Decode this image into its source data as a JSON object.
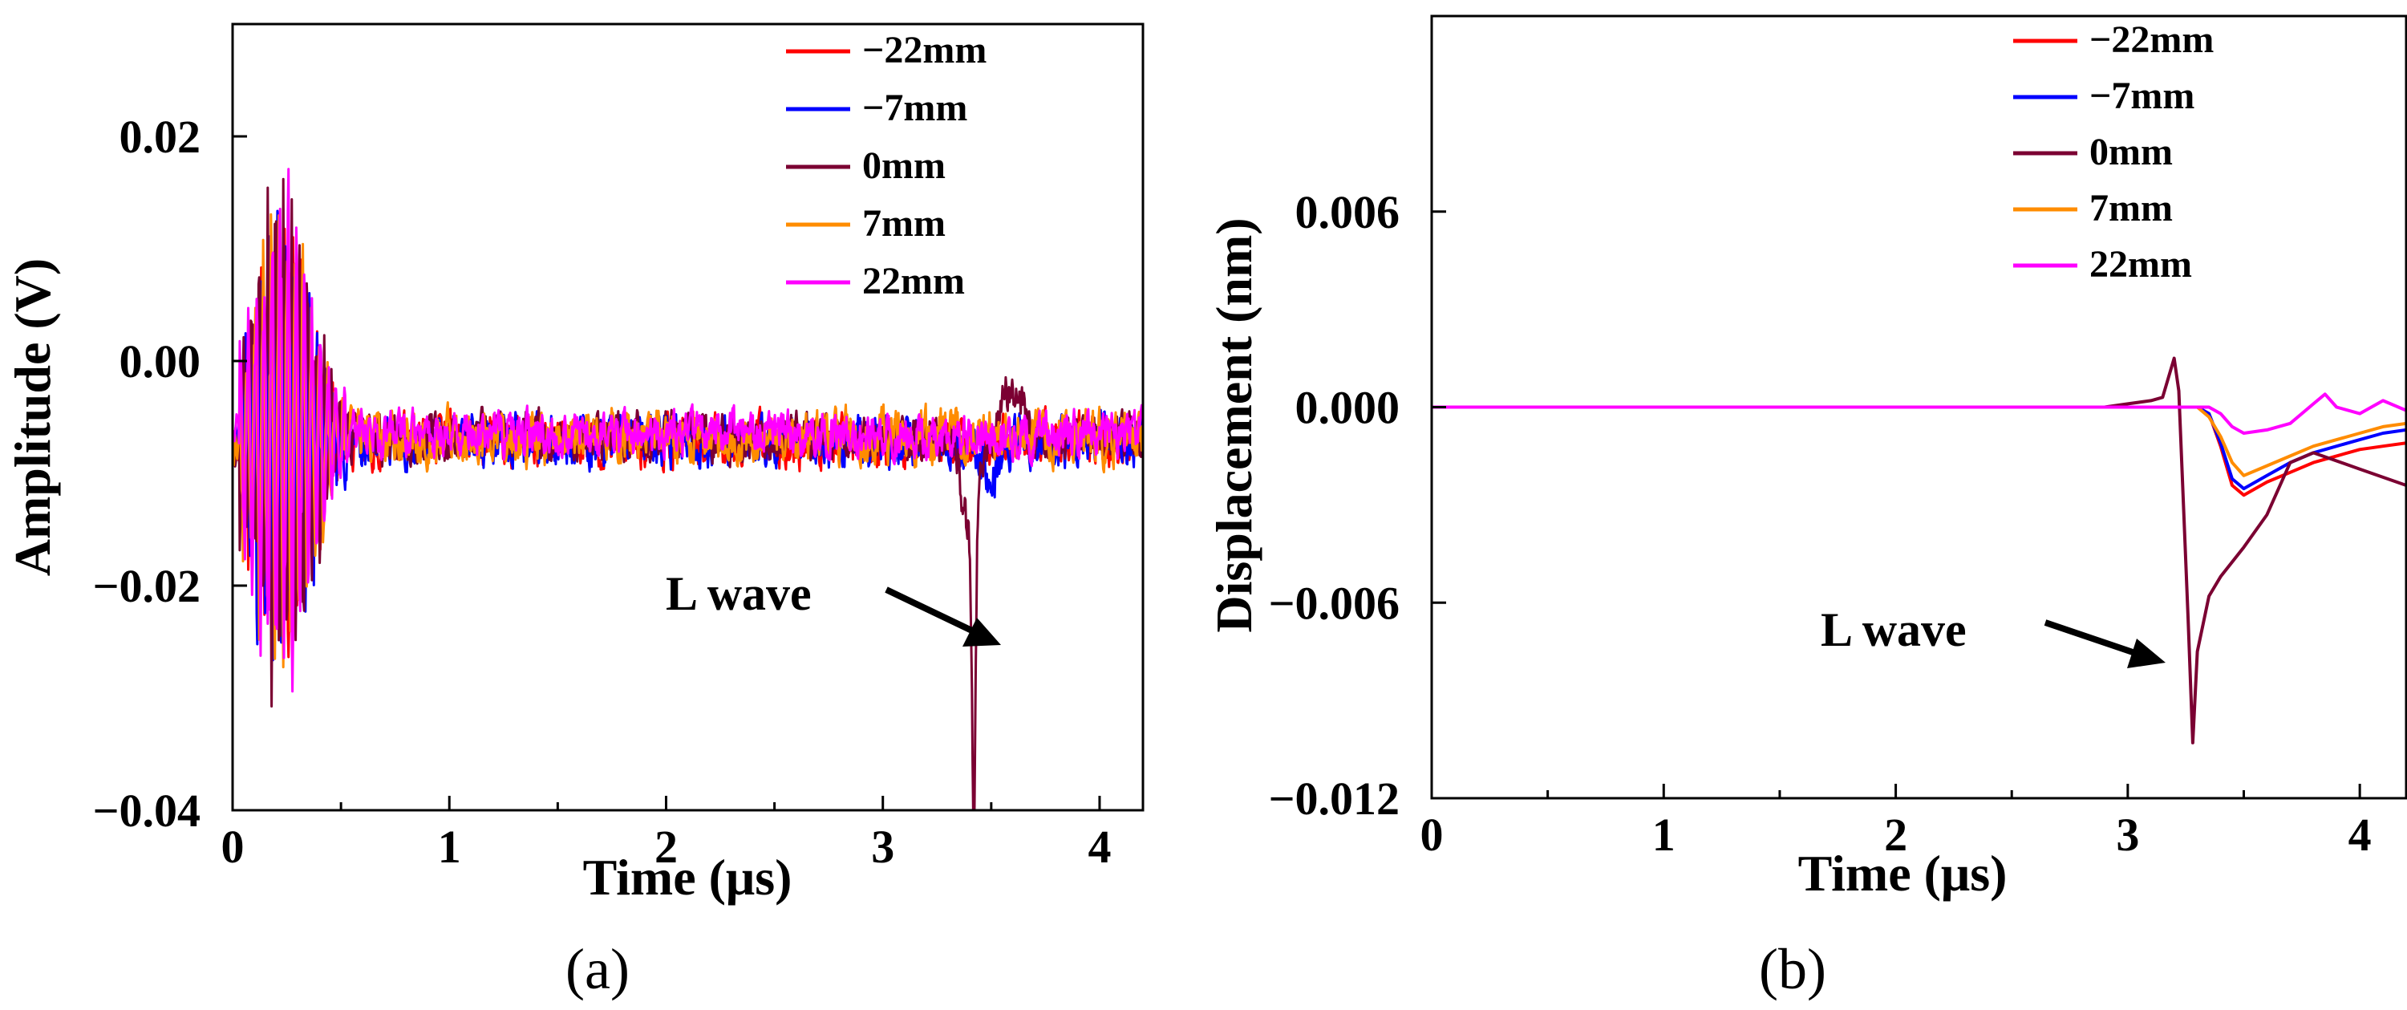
{
  "figure": {
    "panel_labels": [
      "(a)",
      "(b)"
    ]
  },
  "chart_data": [
    {
      "type": "line",
      "panel": "(a)",
      "xlabel": "Time (μs)",
      "ylabel": "Amplitude (V)",
      "xlim": [
        0,
        4.2
      ],
      "ylim": [
        -0.04,
        0.03
      ],
      "xticks": [
        0,
        1,
        2,
        3,
        4
      ],
      "xtick_labels": [
        "0",
        "1",
        "2",
        "3",
        "4"
      ],
      "yticks": [
        -0.04,
        -0.02,
        0.0,
        0.02
      ],
      "ytick_labels": [
        "−0.04",
        "−0.02",
        "0.00",
        "0.02"
      ],
      "legend_position": "top-right",
      "series": [
        {
          "name": "−22mm",
          "color": "#ff0000",
          "baseline": -0.0072,
          "noise": 0.0017,
          "burst_amp": 0.015,
          "seed": 11,
          "features": []
        },
        {
          "name": "−7mm",
          "color": "#0000ff",
          "baseline": -0.0072,
          "noise": 0.0017,
          "burst_amp": 0.016,
          "seed": 23,
          "features": [
            {
              "x": 3.5,
              "dy": -0.004,
              "w": 0.04
            }
          ]
        },
        {
          "name": "0mm",
          "color": "#7b0032",
          "baseline": -0.0068,
          "noise": 0.0016,
          "burst_amp": 0.018,
          "seed": 37,
          "features": [
            {
              "x": 3.42,
              "dy": -0.027,
              "w": 0.012
            },
            {
              "x": 3.4,
              "dy": -0.008,
              "w": 0.05
            },
            {
              "x": 3.6,
              "dy": 0.0045,
              "w": 0.08
            }
          ]
        },
        {
          "name": "7mm",
          "color": "#ff8c00",
          "baseline": -0.0068,
          "noise": 0.0018,
          "burst_amp": 0.016,
          "seed": 53,
          "features": []
        },
        {
          "name": "22mm",
          "color": "#ff00ff",
          "baseline": -0.0065,
          "noise": 0.0015,
          "burst_amp": 0.017,
          "seed": 71,
          "features": []
        }
      ],
      "annotation": {
        "text": "L wave",
        "arrow_to": [
          3.42,
          -0.027
        ]
      }
    },
    {
      "type": "line",
      "panel": "(b)",
      "xlabel": "Time (μs)",
      "ylabel": "Displacement (nm)",
      "xlim": [
        0,
        4.2
      ],
      "ylim": [
        -0.012,
        0.012
      ],
      "xticks": [
        0,
        1,
        2,
        3,
        4
      ],
      "xtick_labels": [
        "0",
        "1",
        "2",
        "3",
        "4"
      ],
      "yticks": [
        -0.012,
        -0.006,
        0.0,
        0.006
      ],
      "ytick_labels": [
        "−0.012",
        "−0.006",
        "0.000",
        "0.006"
      ],
      "legend_position": "top-right",
      "series": [
        {
          "name": "−22mm",
          "color": "#ff0000",
          "x": [
            0,
            3.2,
            3.3,
            3.35,
            3.4,
            3.45,
            3.5,
            3.6,
            3.7,
            3.8,
            3.9,
            4.0,
            4.1,
            4.2
          ],
          "y": [
            0,
            0,
            0,
            -0.0002,
            -0.0012,
            -0.0024,
            -0.0027,
            -0.0023,
            -0.002,
            -0.0017,
            -0.0015,
            -0.0013,
            -0.0012,
            -0.0011
          ]
        },
        {
          "name": "−7mm",
          "color": "#0000ff",
          "x": [
            0,
            3.2,
            3.3,
            3.35,
            3.4,
            3.45,
            3.5,
            3.6,
            3.7,
            3.8,
            3.9,
            4.0,
            4.1,
            4.2
          ],
          "y": [
            0,
            0,
            0,
            -0.0002,
            -0.0011,
            -0.0022,
            -0.0025,
            -0.0021,
            -0.0017,
            -0.0014,
            -0.0012,
            -0.001,
            -0.0008,
            -0.0007
          ]
        },
        {
          "name": "0mm",
          "color": "#7b0032",
          "x": [
            0,
            2.9,
            3.0,
            3.1,
            3.15,
            3.2,
            3.22,
            3.24,
            3.26,
            3.28,
            3.3,
            3.35,
            3.4,
            3.5,
            3.6,
            3.7,
            3.8,
            4.0,
            4.2
          ],
          "y": [
            0,
            0,
            0.0001,
            0.0002,
            0.0003,
            0.0015,
            0.0005,
            -0.003,
            -0.0065,
            -0.0103,
            -0.0075,
            -0.0058,
            -0.0052,
            -0.0043,
            -0.0033,
            -0.0017,
            -0.0014,
            -0.0019,
            -0.0024
          ]
        },
        {
          "name": "7mm",
          "color": "#ff8c00",
          "x": [
            0,
            3.3,
            3.35,
            3.4,
            3.45,
            3.5,
            3.6,
            3.7,
            3.8,
            3.9,
            4.0,
            4.1,
            4.2
          ],
          "y": [
            0,
            0,
            -0.0003,
            -0.0009,
            -0.0017,
            -0.0021,
            -0.0018,
            -0.0015,
            -0.0012,
            -0.001,
            -0.0008,
            -0.0006,
            -0.0005
          ]
        },
        {
          "name": "22mm",
          "color": "#ff00ff",
          "x": [
            0,
            3.35,
            3.4,
            3.45,
            3.5,
            3.6,
            3.7,
            3.8,
            3.85,
            3.9,
            4.0,
            4.1,
            4.2
          ],
          "y": [
            0,
            0,
            -0.0002,
            -0.0006,
            -0.0008,
            -0.0007,
            -0.0005,
            0.0001,
            0.0004,
            0.0,
            -0.0002,
            0.0002,
            -0.0001
          ]
        }
      ],
      "annotation": {
        "text": "L wave",
        "arrow_to": [
          3.27,
          -0.0083
        ]
      }
    }
  ]
}
